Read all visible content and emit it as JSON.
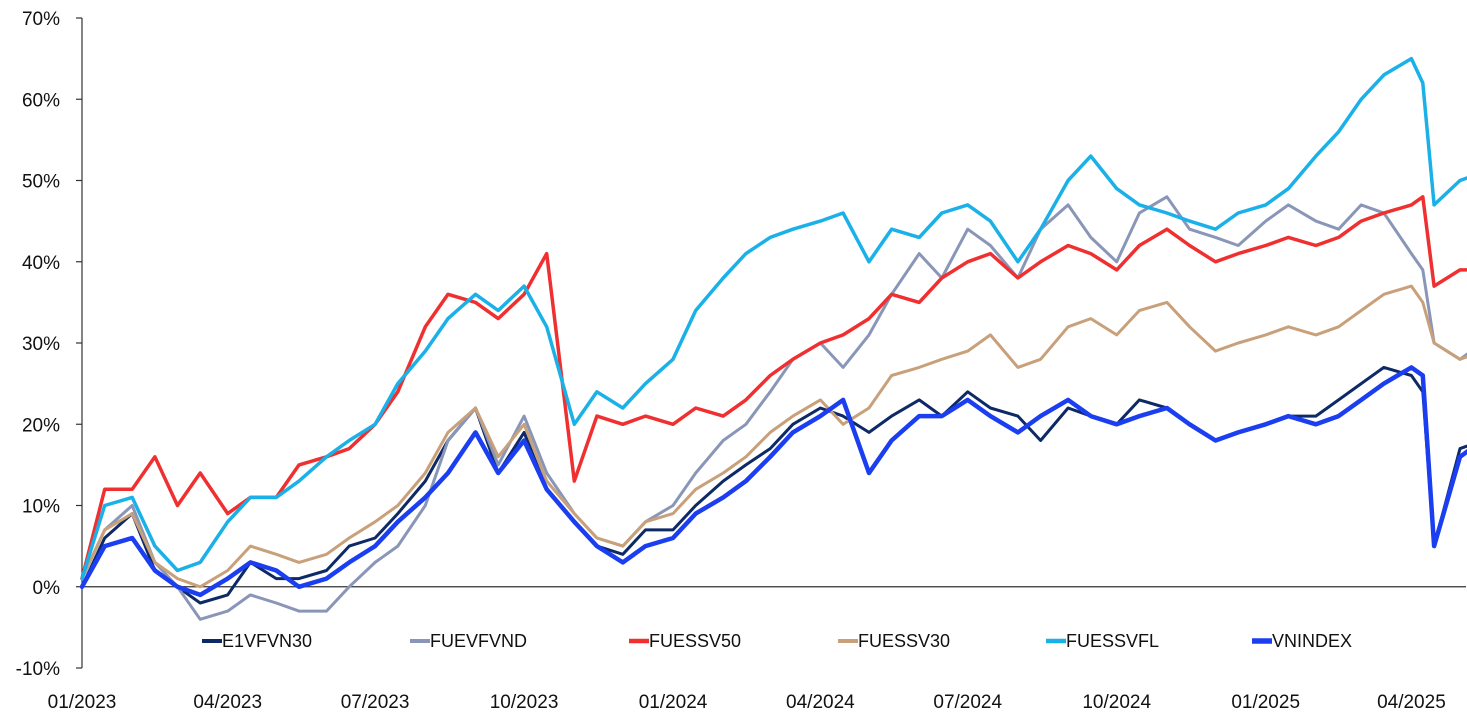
{
  "chart_data": {
    "type": "line",
    "title": "",
    "xlabel": "",
    "ylabel": "",
    "ylim": [
      -10,
      70
    ],
    "y_ticks": [
      -10,
      0,
      10,
      20,
      30,
      40,
      50,
      60,
      70
    ],
    "y_tick_labels": [
      "-10%",
      "0%",
      "10%",
      "20%",
      "30%",
      "40%",
      "50%",
      "60%",
      "70%"
    ],
    "x_range": [
      "2023-01",
      "2025-05"
    ],
    "x_tick_labels": [
      "01/2023",
      "04/2023",
      "07/2023",
      "10/2023",
      "01/2024",
      "04/2024",
      "07/2024",
      "10/2024",
      "01/2025",
      "04/2025"
    ],
    "x_ticks": [
      "2023-01",
      "2023-04",
      "2023-07",
      "2023-10",
      "2024-01",
      "2024-04",
      "2024-07",
      "2024-10",
      "2025-01",
      "2025-04"
    ],
    "grid": false,
    "legend_position": "bottom",
    "x": [
      "2023-01-01",
      "2023-01-15",
      "2023-02-01",
      "2023-02-15",
      "2023-03-01",
      "2023-03-15",
      "2023-04-01",
      "2023-04-15",
      "2023-05-01",
      "2023-05-15",
      "2023-06-01",
      "2023-06-15",
      "2023-07-01",
      "2023-07-15",
      "2023-08-01",
      "2023-08-15",
      "2023-09-01",
      "2023-09-15",
      "2023-10-01",
      "2023-10-15",
      "2023-11-01",
      "2023-11-15",
      "2023-12-01",
      "2023-12-15",
      "2024-01-01",
      "2024-01-15",
      "2024-02-01",
      "2024-02-15",
      "2024-03-01",
      "2024-03-15",
      "2024-04-01",
      "2024-04-15",
      "2024-05-01",
      "2024-05-15",
      "2024-06-01",
      "2024-06-15",
      "2024-07-01",
      "2024-07-15",
      "2024-08-01",
      "2024-08-15",
      "2024-09-01",
      "2024-09-15",
      "2024-10-01",
      "2024-10-15",
      "2024-11-01",
      "2024-11-15",
      "2024-12-01",
      "2024-12-15",
      "2025-01-01",
      "2025-01-15",
      "2025-02-01",
      "2025-02-15",
      "2025-03-01",
      "2025-03-15",
      "2025-04-01",
      "2025-04-08",
      "2025-04-15",
      "2025-05-01",
      "2025-05-15"
    ],
    "series": [
      {
        "name": "E1VFVN30",
        "color": "#0d2a66",
        "width": 3,
        "values": [
          0,
          6,
          9,
          2,
          0,
          -2,
          -1,
          3,
          1,
          1,
          2,
          5,
          6,
          9,
          13,
          18,
          22,
          14,
          19,
          12,
          8,
          5,
          4,
          7,
          7,
          10,
          13,
          15,
          17,
          20,
          22,
          21,
          19,
          21,
          23,
          21,
          24,
          22,
          21,
          18,
          22,
          21,
          20,
          23,
          22,
          20,
          18,
          19,
          20,
          21,
          21,
          23,
          25,
          27,
          26,
          24,
          5,
          17,
          18
        ]
      },
      {
        "name": "FUEVFVND",
        "color": "#8a96b8",
        "width": 3,
        "values": [
          1,
          7,
          10,
          3,
          0,
          -4,
          -3,
          -1,
          -2,
          -3,
          -3,
          0,
          3,
          5,
          10,
          18,
          22,
          15,
          21,
          14,
          9,
          6,
          5,
          8,
          10,
          14,
          18,
          20,
          24,
          28,
          30,
          27,
          31,
          36,
          41,
          38,
          44,
          42,
          38,
          44,
          47,
          43,
          40,
          46,
          48,
          44,
          43,
          42,
          45,
          47,
          45,
          44,
          47,
          46,
          41,
          39,
          30,
          28,
          30
        ]
      },
      {
        "name": "FUESSV50",
        "color": "#f03030",
        "width": 3.5,
        "values": [
          1,
          12,
          12,
          16,
          10,
          14,
          9,
          11,
          11,
          15,
          16,
          17,
          20,
          24,
          32,
          36,
          35,
          33,
          36,
          41,
          13,
          21,
          20,
          21,
          20,
          22,
          21,
          23,
          26,
          28,
          30,
          31,
          33,
          36,
          35,
          38,
          40,
          41,
          38,
          40,
          42,
          41,
          39,
          42,
          44,
          42,
          40,
          41,
          42,
          43,
          42,
          43,
          45,
          46,
          47,
          48,
          37,
          39,
          39
        ]
      },
      {
        "name": "FUESSV30",
        "color": "#c8a07a",
        "width": 3,
        "values": [
          1,
          7,
          9,
          3,
          1,
          0,
          2,
          5,
          4,
          3,
          4,
          6,
          8,
          10,
          14,
          19,
          22,
          16,
          20,
          13,
          9,
          6,
          5,
          8,
          9,
          12,
          14,
          16,
          19,
          21,
          23,
          20,
          22,
          26,
          27,
          28,
          29,
          31,
          27,
          28,
          32,
          33,
          31,
          34,
          35,
          32,
          29,
          30,
          31,
          32,
          31,
          32,
          34,
          36,
          37,
          35,
          30,
          28,
          29
        ]
      },
      {
        "name": "FUESSVFL",
        "color": "#1ab0e8",
        "width": 3.5,
        "values": [
          1,
          10,
          11,
          5,
          2,
          3,
          8,
          11,
          11,
          13,
          16,
          18,
          20,
          25,
          29,
          33,
          36,
          34,
          37,
          32,
          20,
          24,
          22,
          25,
          28,
          34,
          38,
          41,
          43,
          44,
          45,
          46,
          40,
          44,
          43,
          46,
          47,
          45,
          40,
          44,
          50,
          53,
          49,
          47,
          46,
          45,
          44,
          46,
          47,
          49,
          53,
          56,
          60,
          63,
          65,
          62,
          47,
          50,
          51
        ]
      },
      {
        "name": "VNINDEX",
        "color": "#1a3ef0",
        "width": 4.5,
        "values": [
          0,
          5,
          6,
          2,
          0,
          -1,
          1,
          3,
          2,
          0,
          1,
          3,
          5,
          8,
          11,
          14,
          19,
          14,
          18,
          12,
          8,
          5,
          3,
          5,
          6,
          9,
          11,
          13,
          16,
          19,
          21,
          23,
          14,
          18,
          21,
          21,
          23,
          21,
          19,
          21,
          23,
          21,
          20,
          21,
          22,
          20,
          18,
          19,
          20,
          21,
          20,
          21,
          23,
          25,
          27,
          26,
          5,
          16,
          18
        ]
      }
    ]
  }
}
